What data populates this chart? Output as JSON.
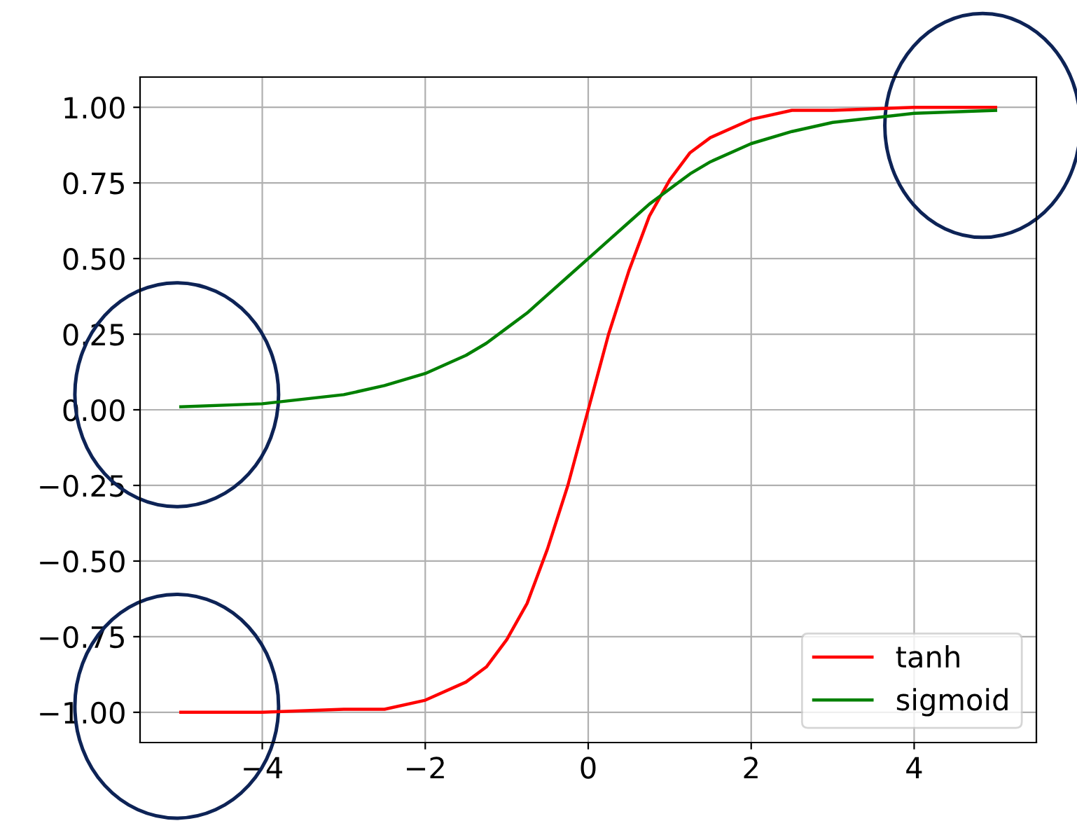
{
  "chart_data": {
    "type": "line",
    "x": [
      -5,
      -4,
      -3,
      -2.5,
      -2,
      -1.5,
      -1.25,
      -1,
      -0.75,
      -0.5,
      -0.25,
      0,
      0.25,
      0.5,
      0.75,
      1,
      1.25,
      1.5,
      2,
      2.5,
      3,
      4,
      5
    ],
    "series": [
      {
        "name": "tanh",
        "color": "#ff0000",
        "values": [
          -1.0,
          -1.0,
          -0.99,
          -0.99,
          -0.96,
          -0.9,
          -0.85,
          -0.76,
          -0.64,
          -0.46,
          -0.25,
          0,
          0.25,
          0.46,
          0.64,
          0.76,
          0.85,
          0.9,
          0.96,
          0.99,
          0.99,
          1.0,
          1.0
        ]
      },
      {
        "name": "sigmoid",
        "color": "#008000",
        "values": [
          0.01,
          0.02,
          0.05,
          0.08,
          0.12,
          0.18,
          0.22,
          0.27,
          0.32,
          0.38,
          0.44,
          0.5,
          0.56,
          0.62,
          0.68,
          0.73,
          0.78,
          0.82,
          0.88,
          0.92,
          0.95,
          0.98,
          0.99
        ]
      }
    ],
    "xlim": [
      -5.5,
      5.5
    ],
    "ylim": [
      -1.1,
      1.1
    ],
    "xticks": [
      {
        "value": -4,
        "label": "−4"
      },
      {
        "value": -2,
        "label": "−2"
      },
      0,
      2,
      4
    ],
    "yticks": [
      {
        "value": -1,
        "label": "−1.00"
      },
      {
        "value": -0.75,
        "label": "−0.75"
      },
      {
        "value": -0.5,
        "label": "−0.50"
      },
      {
        "value": -0.25,
        "label": "−0.25"
      },
      {
        "value": 0,
        "label": "0.00"
      },
      {
        "value": 0.25,
        "label": "0.25"
      },
      {
        "value": 0.5,
        "label": "0.50"
      },
      {
        "value": 0.75,
        "label": "0.75"
      },
      {
        "value": 1,
        "label": "1.00"
      }
    ],
    "grid": true,
    "legend": "bottom right",
    "line_style": "solid",
    "marker": "none"
  }
}
